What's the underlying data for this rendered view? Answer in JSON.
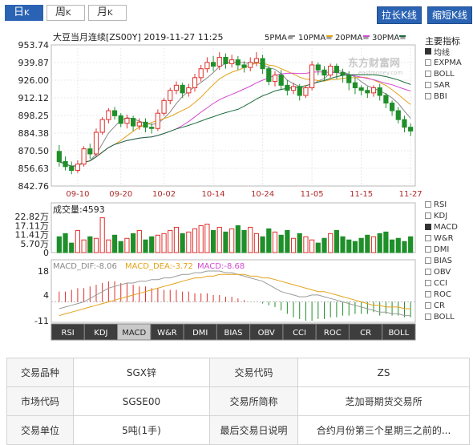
{
  "tabs": [
    {
      "label": "日",
      "suffix": "K",
      "active": true
    },
    {
      "label": "周",
      "suffix": "K",
      "active": false
    },
    {
      "label": "月",
      "suffix": "K",
      "active": false
    }
  ],
  "buttons": {
    "stretch": "拉长K线",
    "shrink": "缩短K线"
  },
  "header": {
    "title": "大豆当月连续[ZS00Y] 2019-11-27 11:25",
    "ma5": "5PMA=",
    "ma10": "10PMA=",
    "ma20": "20PMA=",
    "ma30": "30PMA="
  },
  "watermark": "东方财富网",
  "watermark_sub": "eastmoney.com",
  "main_indicators": {
    "title": "主要指标",
    "items": [
      {
        "label": "均线",
        "checked": true
      },
      {
        "label": "EXPMA",
        "checked": false
      },
      {
        "label": "BOLL",
        "checked": false
      },
      {
        "label": "SAR",
        "checked": false
      },
      {
        "label": "BBI",
        "checked": false
      }
    ]
  },
  "sub_indicators": [
    {
      "label": "RSI",
      "checked": false
    },
    {
      "label": "KDJ",
      "checked": false
    },
    {
      "label": "MACD",
      "checked": true
    },
    {
      "label": "W&R",
      "checked": false
    },
    {
      "label": "DMI",
      "checked": false
    },
    {
      "label": "BIAS",
      "checked": false
    },
    {
      "label": "OBV",
      "checked": false
    },
    {
      "label": "CCI",
      "checked": false
    },
    {
      "label": "ROC",
      "checked": false
    },
    {
      "label": "CR",
      "checked": false
    },
    {
      "label": "BOLL",
      "checked": false
    }
  ],
  "bottom_tabs": [
    "RSI",
    "KDJ",
    "MACD",
    "W&R",
    "DMI",
    "BIAS",
    "OBV",
    "CCI",
    "ROC",
    "CR",
    "BOLL"
  ],
  "active_bottom_tab": "MACD",
  "colors": {
    "up": "#e0302c",
    "down": "#1f8f2a",
    "ma5": "#888888",
    "ma10": "#e3a21a",
    "ma20": "#d44ad4",
    "ma30": "#1a6b3c",
    "accent": "#2a63b3"
  },
  "chart_data": {
    "type": "candlestick",
    "price_axis": {
      "ticks": [
        "953.74",
        "939.87",
        "926.00",
        "912.12",
        "898.25",
        "884.38",
        "870.50",
        "856.63",
        "842.76"
      ],
      "min": 842.76,
      "max": 953.74
    },
    "date_ticks": [
      {
        "label": "09-10",
        "index": 3
      },
      {
        "label": "09-20",
        "index": 10
      },
      {
        "label": "10-02",
        "index": 17
      },
      {
        "label": "10-14",
        "index": 25
      },
      {
        "label": "10-24",
        "index": 33
      },
      {
        "label": "11-05",
        "index": 41
      },
      {
        "label": "11-15",
        "index": 49
      },
      {
        "label": "11-27",
        "index": 57
      }
    ],
    "candles": [
      [
        870,
        862,
        875,
        858
      ],
      [
        862,
        858,
        866,
        855
      ],
      [
        858,
        855,
        862,
        852
      ],
      [
        855,
        860,
        863,
        853
      ],
      [
        860,
        872,
        874,
        858
      ],
      [
        872,
        868,
        876,
        864
      ],
      [
        868,
        885,
        888,
        866
      ],
      [
        885,
        895,
        897,
        883
      ],
      [
        895,
        902,
        904,
        892
      ],
      [
        902,
        898,
        905,
        895
      ],
      [
        898,
        892,
        900,
        889
      ],
      [
        892,
        896,
        899,
        888
      ],
      [
        896,
        890,
        898,
        886
      ],
      [
        890,
        893,
        896,
        887
      ],
      [
        893,
        889,
        896,
        885
      ],
      [
        889,
        888,
        892,
        884
      ],
      [
        888,
        900,
        903,
        886
      ],
      [
        900,
        910,
        912,
        898
      ],
      [
        910,
        918,
        920,
        907
      ],
      [
        918,
        922,
        925,
        915
      ],
      [
        922,
        916,
        924,
        912
      ],
      [
        916,
        920,
        923,
        913
      ],
      [
        920,
        928,
        931,
        917
      ],
      [
        928,
        935,
        938,
        925
      ],
      [
        935,
        940,
        944,
        932
      ],
      [
        940,
        937,
        945,
        933
      ],
      [
        937,
        944,
        948,
        934
      ],
      [
        944,
        939,
        947,
        935
      ],
      [
        939,
        942,
        946,
        936
      ],
      [
        942,
        938,
        945,
        934
      ],
      [
        938,
        936,
        941,
        932
      ],
      [
        936,
        940,
        944,
        933
      ],
      [
        940,
        943,
        948,
        937
      ],
      [
        943,
        935,
        946,
        931
      ],
      [
        935,
        925,
        937,
        922
      ],
      [
        925,
        930,
        933,
        921
      ],
      [
        930,
        922,
        934,
        918
      ],
      [
        922,
        918,
        926,
        914
      ],
      [
        918,
        921,
        924,
        915
      ],
      [
        921,
        914,
        923,
        910
      ],
      [
        914,
        920,
        922,
        912
      ],
      [
        920,
        938,
        941,
        918
      ],
      [
        938,
        934,
        940,
        930
      ],
      [
        934,
        930,
        937,
        926
      ],
      [
        930,
        937,
        939,
        928
      ],
      [
        937,
        932,
        939,
        927
      ],
      [
        932,
        930,
        935,
        924
      ],
      [
        930,
        924,
        933,
        918
      ],
      [
        924,
        920,
        928,
        915
      ],
      [
        920,
        918,
        922,
        914
      ],
      [
        918,
        916,
        921,
        912
      ],
      [
        916,
        920,
        922,
        913
      ],
      [
        920,
        914,
        923,
        910
      ],
      [
        914,
        908,
        916,
        904
      ],
      [
        908,
        902,
        910,
        898
      ],
      [
        902,
        895,
        905,
        892
      ],
      [
        895,
        889,
        898,
        885
      ],
      [
        889,
        886,
        892,
        882
      ]
    ],
    "ma_values": {
      "ma5": "",
      "ma10": "",
      "ma20": "",
      "ma30": ""
    },
    "volume": {
      "title": "成交量:4593",
      "ticks": [
        "22.82万",
        "17.11万",
        "11.41万",
        "5.70万",
        "0"
      ],
      "max": 22.82,
      "values": [
        10,
        12,
        6,
        14,
        8,
        10,
        9,
        22,
        8,
        11,
        7,
        9,
        12,
        14,
        8,
        10,
        11,
        12,
        14,
        16,
        12,
        13,
        15,
        17,
        18,
        14,
        16,
        13,
        15,
        17,
        14,
        16,
        12,
        10,
        15,
        13,
        11,
        14,
        9,
        12,
        10,
        8,
        6,
        9,
        12,
        14,
        10,
        8,
        7,
        9,
        11,
        10,
        12,
        13,
        8,
        9,
        7,
        10
      ]
    },
    "macd": {
      "dif": "MACD_DIF:-8.06",
      "dea": "MACD_DEA:-3.72",
      "macd": "MACD:-8.68",
      "ticks": [
        "18",
        "4",
        "-11"
      ],
      "max": 18,
      "min": -11,
      "dif_values": [
        -4,
        -3,
        -2,
        -1,
        0,
        2,
        4,
        6,
        8,
        9,
        10,
        11,
        11,
        12,
        12,
        13,
        13,
        14,
        14,
        15,
        16,
        16,
        17,
        17,
        18,
        18,
        18,
        17,
        17,
        16,
        15,
        14,
        13,
        12,
        10,
        8,
        6,
        5,
        4,
        3,
        3,
        4,
        4,
        3,
        2,
        1,
        0,
        -1,
        -2,
        -3,
        -4,
        -5,
        -6,
        -6,
        -7,
        -7,
        -8,
        -8
      ],
      "dea_values": [
        -8,
        -7,
        -6,
        -5,
        -4,
        -3,
        -2,
        -1,
        0,
        1,
        2,
        3,
        4,
        5,
        6,
        7,
        8,
        9,
        10,
        11,
        12,
        13,
        14,
        14,
        15,
        15,
        16,
        16,
        16,
        16,
        16,
        15,
        15,
        14,
        14,
        13,
        12,
        11,
        10,
        9,
        8,
        7,
        6,
        6,
        5,
        4,
        3,
        2,
        1,
        0,
        -1,
        -2,
        -2,
        -3,
        -3,
        -3,
        -4,
        -4
      ],
      "hist_values": [
        6,
        6,
        7,
        8,
        8,
        9,
        10,
        11,
        12,
        12,
        11,
        11,
        10,
        9,
        9,
        8,
        8,
        7,
        7,
        7,
        6,
        6,
        5,
        5,
        5,
        4,
        4,
        3,
        3,
        2,
        1,
        0,
        0,
        -1,
        -2,
        -3,
        -5,
        -7,
        -9,
        -10,
        -11,
        -11,
        -10,
        -10,
        -9,
        -9,
        -8,
        -8,
        -7,
        -7,
        -7,
        -6,
        -8,
        -7,
        -8,
        -8,
        -9,
        -9
      ]
    }
  },
  "info_table": [
    {
      "label1": "交易品种",
      "value1": "SGX锌",
      "label2": "交易代码",
      "value2": "ZS"
    },
    {
      "label1": "市场代码",
      "value1": "SGSE00",
      "label2": "交易所简称",
      "value2": "芝加哥期货交易所"
    },
    {
      "label1": "交易单位",
      "value1": "5吨(1手)",
      "label2": "最后交易日说明",
      "value2": "合约月份第三个星期三之前的..."
    }
  ]
}
